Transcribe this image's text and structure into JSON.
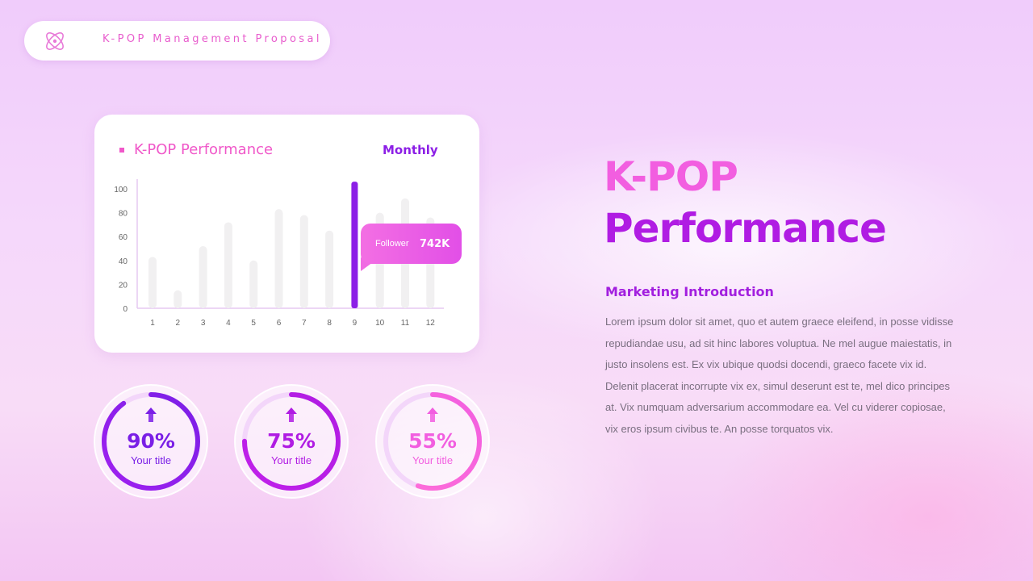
{
  "header": {
    "title": "K-POP Management Proposal",
    "logo_icon": "atom-icon",
    "accent": "#e85ccd"
  },
  "chart_card": {
    "title": "K-POP Performance",
    "period": "Monthly",
    "tooltip": {
      "label": "Follower",
      "value": "742K"
    }
  },
  "chart_data": {
    "type": "bar",
    "categories": [
      "1",
      "2",
      "3",
      "4",
      "5",
      "6",
      "7",
      "8",
      "9",
      "10",
      "11",
      "12"
    ],
    "values": [
      43,
      15,
      52,
      72,
      40,
      83,
      78,
      65,
      106,
      80,
      92,
      76
    ],
    "highlight_index": 8,
    "yticks": [
      0,
      20,
      40,
      60,
      80,
      100
    ],
    "ylim": [
      0,
      100
    ],
    "title": "K-POP Performance",
    "xlabel": "",
    "ylabel": "",
    "colors": {
      "bar": "#f1f0f1",
      "highlight": "#8c1fe6"
    }
  },
  "stats": [
    {
      "percent": "90%",
      "label": "Your title",
      "value": 0.9,
      "color_a": "#7a1fe6",
      "color_b": "#a020f0",
      "icon": "arrow-up-icon"
    },
    {
      "percent": "75%",
      "label": "Your title",
      "value": 0.75,
      "color_a": "#b01ce3",
      "color_b": "#c020ea",
      "icon": "arrow-up-icon"
    },
    {
      "percent": "55%",
      "label": "Your title",
      "value": 0.55,
      "color_a": "#f25ee0",
      "color_b": "#ff6fd8",
      "icon": "arrow-up-icon"
    }
  ],
  "right": {
    "title_line1": "K-POP",
    "title_line2": "Performance",
    "subtitle": "Marketing Introduction",
    "body": "Lorem ipsum dolor sit amet, quo et autem graece eleifend, in posse vidisse repudiandae usu, ad sit hinc labores voluptua. Ne mel augue maiestatis, in justo insolens est. Ex vix ubique quodsi docendi, graeco facete vix id. Delenit placerat incorrupte vix ex, simul deserunt est te, mel dico principes at. Vix numquam adversarium accommodare ea. Vel cu viderer copiosae, vix eros ipsum civibus te. An posse torquatos vix."
  }
}
